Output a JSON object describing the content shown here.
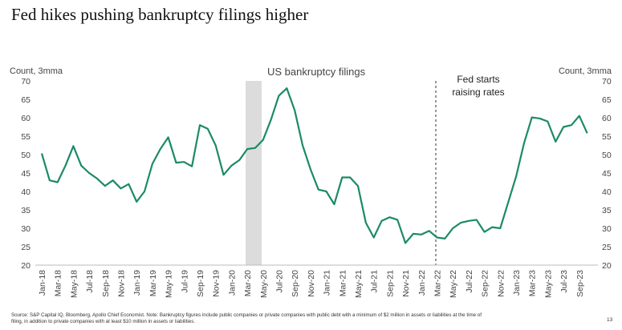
{
  "chart_data": {
    "type": "line",
    "title": "Fed hikes pushing bankruptcy filings higher",
    "y_label": "Count, 3mma",
    "y2_label": "Count, 3mma",
    "annotations": [
      {
        "text": "US bankruptcy filings"
      },
      {
        "lines": [
          "Fed starts",
          "raising rates"
        ]
      }
    ],
    "source": "Source: S&P Capital IQ, Bloomberg, Apollo Chief Economist. Note: Bankruptcy figures include public companies or private companies with public debt with a minimum of $2 million in assets or liabilities at the time of filing, in addition to private companies with at least $10 million in assets or liabilities.",
    "page_number": "13",
    "categories": [
      "Jan-18",
      null,
      "Mar-18",
      null,
      "May-18",
      null,
      "Jul-18",
      null,
      "Sep-18",
      null,
      "Nov-18",
      null,
      "Jan-19",
      null,
      "Mar-19",
      null,
      "May-19",
      null,
      "Jul-19",
      null,
      "Sep-19",
      null,
      "Nov-19",
      null,
      "Jan-20",
      null,
      "Mar-20",
      null,
      "May-20",
      null,
      "Jul-20",
      null,
      "Sep-20",
      null,
      "Nov-20",
      null,
      "Jan-21",
      null,
      "Mar-21",
      null,
      "May-21",
      null,
      "Jul-21",
      null,
      "Sep-21",
      null,
      "Nov-21",
      null,
      "Jan-22",
      null,
      "Mar-22",
      null,
      "May-22",
      null,
      "Jul-22",
      null,
      "Sep-22",
      null,
      "Nov-22",
      null,
      "Jan-23",
      null,
      "Mar-23",
      null,
      "May-23",
      null,
      "Jul-23",
      null,
      "Sep-23",
      null
    ],
    "series": [
      {
        "name": "US bankruptcy filings",
        "color": "#1b8a68",
        "values": [
          50.3,
          43,
          42.5,
          47,
          52.3,
          47,
          45,
          43.5,
          41.5,
          43,
          40.8,
          42,
          37.2,
          40,
          47.5,
          51.5,
          54.7,
          47.8,
          48,
          46.8,
          58,
          57,
          52.5,
          44.5,
          47,
          48.5,
          51.5,
          51.8,
          54,
          59.5,
          66,
          68,
          62,
          52.5,
          46,
          40.5,
          40,
          36.5,
          43.8,
          43.8,
          41.5,
          31.5,
          27.5,
          32,
          33,
          32.3,
          26,
          28.5,
          28.3,
          29.3,
          27.5,
          27.2,
          30,
          31.5,
          32,
          32.3,
          29,
          30.3,
          30,
          37,
          44,
          53,
          60.1,
          59.8,
          59,
          53.5,
          57.5,
          58,
          60.5,
          55.8
        ]
      }
    ],
    "ylim": [
      20,
      70
    ],
    "yticks": [
      20,
      25,
      30,
      35,
      40,
      45,
      50,
      55,
      60,
      65,
      70
    ],
    "y2lim": [
      20,
      70
    ],
    "y2ticks": [
      20,
      25,
      30,
      35,
      40,
      45,
      50,
      55,
      60,
      65,
      70
    ],
    "grid": false
  }
}
